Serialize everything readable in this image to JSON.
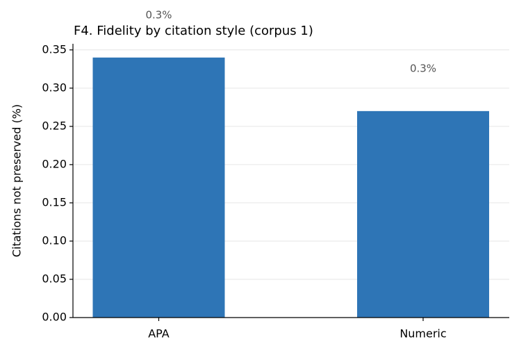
{
  "chart_data": {
    "type": "bar",
    "title": "F4. Fidelity by citation style (corpus 1)",
    "y_label": "Citations not preserved (%)",
    "categories": [
      "APA",
      "Numeric"
    ],
    "values": [
      0.34,
      0.27
    ],
    "value_labels": [
      "0.3%",
      "0.3%"
    ],
    "color": "#2e75b6",
    "ylim": [
      0,
      0.358
    ],
    "yticks": [
      {
        "value": 0,
        "label": "0.00"
      },
      {
        "value": 0.05,
        "label": "0.05"
      },
      {
        "value": 0.1,
        "label": "0.10"
      },
      {
        "value": 0.15,
        "label": "0.15"
      },
      {
        "value": 0.2,
        "label": "0.20"
      },
      {
        "value": 0.25,
        "label": "0.25"
      },
      {
        "value": 0.3,
        "label": "0.30"
      },
      {
        "value": 0.35,
        "label": "0.35"
      }
    ],
    "grid": true
  }
}
